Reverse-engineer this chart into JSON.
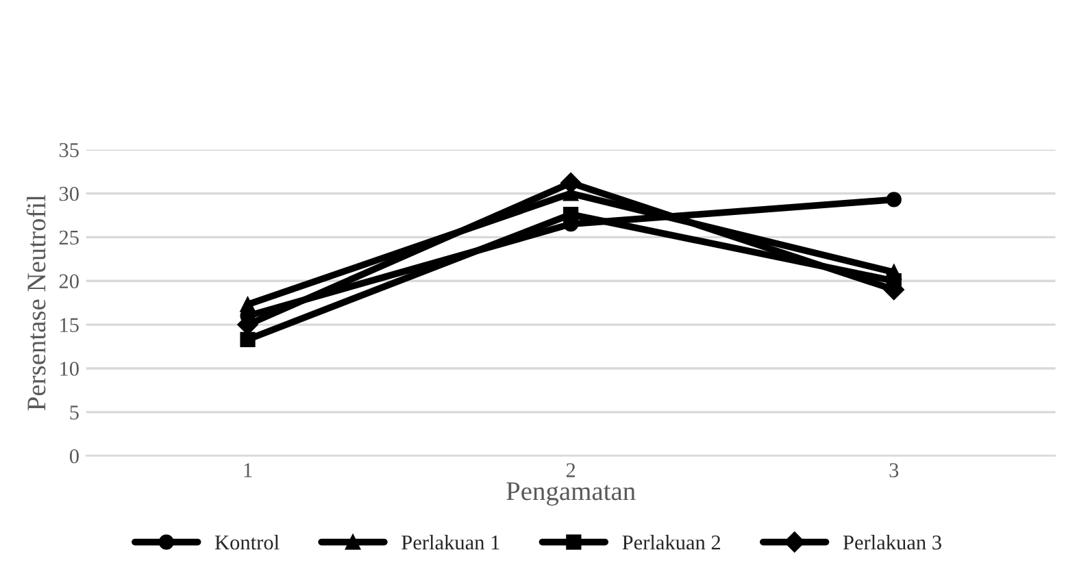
{
  "chart_data": {
    "type": "line",
    "xlabel": "Pengamatan",
    "ylabel": "Persentase Neutrofil",
    "categories": [
      "1",
      "2",
      "3"
    ],
    "series": [
      {
        "name": "Kontrol",
        "color": "#000000",
        "marker": "circle",
        "values": [
          16,
          26.5,
          29.3
        ]
      },
      {
        "name": "Perlakuan 1",
        "color": "#000000",
        "marker": "triangle",
        "values": [
          17.3,
          30,
          21
        ]
      },
      {
        "name": "Perlakuan 2",
        "color": "#000000",
        "marker": "square",
        "values": [
          13.3,
          27.6,
          20
        ]
      },
      {
        "name": "Perlakuan 3",
        "color": "#000000",
        "marker": "diamond",
        "values": [
          15,
          31.2,
          19
        ]
      }
    ],
    "ylim": [
      0,
      35
    ],
    "yticks": [
      0,
      5,
      10,
      15,
      20,
      25,
      30,
      35
    ],
    "grid": "y",
    "legend": "bottom"
  }
}
